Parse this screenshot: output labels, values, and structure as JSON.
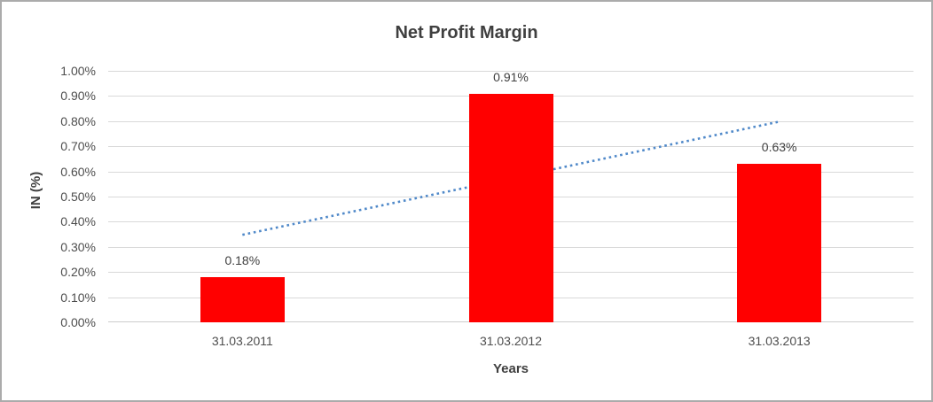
{
  "window": {
    "background_color": "#ffffff",
    "border_color": "#ababab"
  },
  "chart_data": {
    "type": "bar",
    "title": "Net Profit Margin",
    "xlabel": "Years",
    "ylabel": "IN (%)",
    "categories": [
      "31.03.2011",
      "31.03.2012",
      "31.03.2013"
    ],
    "values": [
      0.18,
      0.91,
      0.63
    ],
    "data_labels": [
      "0.18%",
      "0.91%",
      "0.63%"
    ],
    "ylim": [
      0,
      1.0
    ],
    "ytick_step": 0.1,
    "ytick_labels": [
      "0.00%",
      "0.10%",
      "0.20%",
      "0.30%",
      "0.40%",
      "0.50%",
      "0.60%",
      "0.70%",
      "0.80%",
      "0.90%",
      "1.00%"
    ],
    "grid": "horizontal",
    "legend": "none",
    "bar_color": "#ff0000",
    "gridline_color": "#d9d9d9",
    "trendline": {
      "type": "linear",
      "style": "dotted",
      "color": "#5089c9",
      "start_value": 0.348,
      "end_value": 0.798,
      "behind_bars": true
    }
  }
}
